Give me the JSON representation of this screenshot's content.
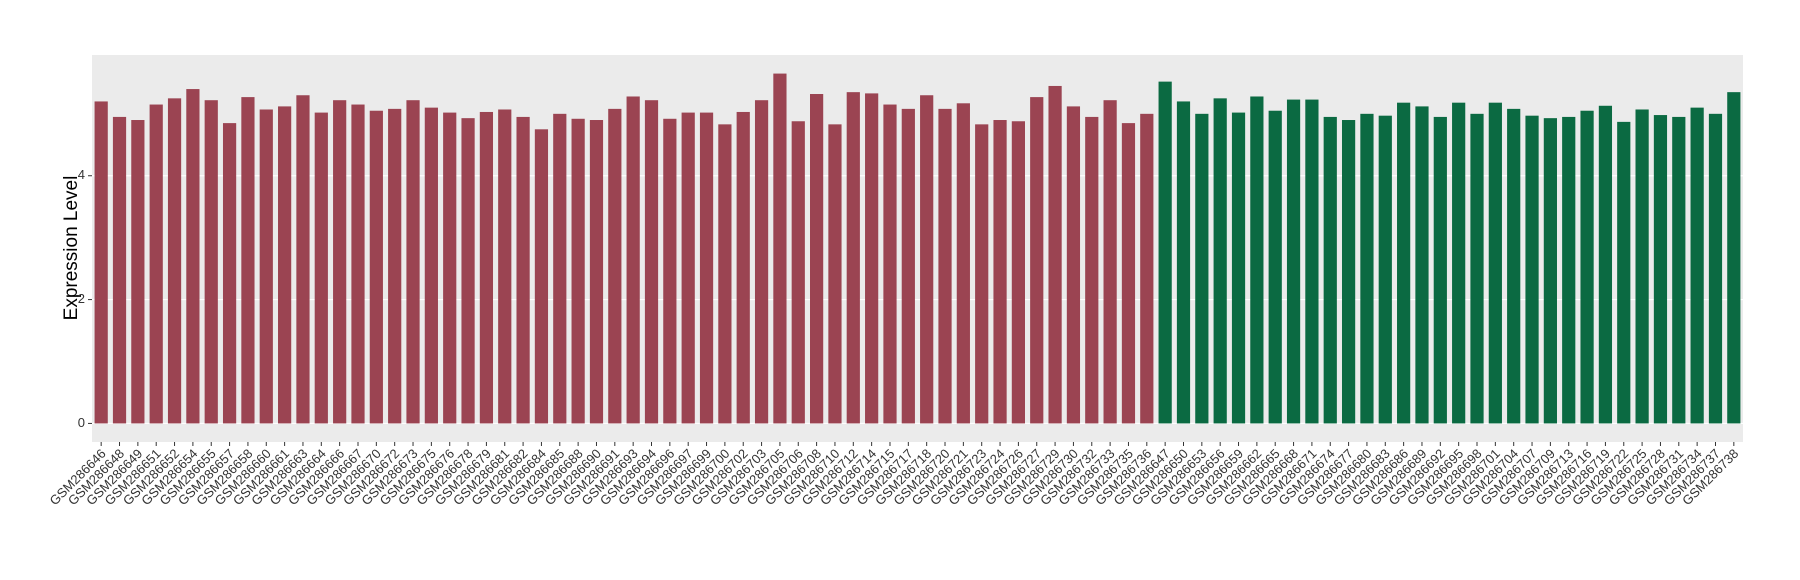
{
  "chart_data": {
    "type": "bar",
    "y_label": "Expression Level",
    "categories": [
      "GSM286646",
      "GSM286648",
      "GSM286649",
      "GSM286651",
      "GSM286652",
      "GSM286654",
      "GSM286655",
      "GSM286657",
      "GSM286658",
      "GSM286660",
      "GSM286661",
      "GSM286663",
      "GSM286664",
      "GSM286666",
      "GSM286667",
      "GSM286670",
      "GSM286672",
      "GSM286673",
      "GSM286675",
      "GSM286676",
      "GSM286678",
      "GSM286679",
      "GSM286681",
      "GSM286682",
      "GSM286684",
      "GSM286685",
      "GSM286688",
      "GSM286690",
      "GSM286691",
      "GSM286693",
      "GSM286694",
      "GSM286696",
      "GSM286697",
      "GSM286699",
      "GSM286700",
      "GSM286702",
      "GSM286703",
      "GSM286705",
      "GSM286706",
      "GSM286708",
      "GSM286710",
      "GSM286712",
      "GSM286714",
      "GSM286715",
      "GSM286717",
      "GSM286718",
      "GSM286720",
      "GSM286721",
      "GSM286723",
      "GSM286724",
      "GSM286726",
      "GSM286727",
      "GSM286729",
      "GSM286730",
      "GSM286732",
      "GSM286733",
      "GSM286735",
      "GSM286736",
      "GSM286647",
      "GSM286650",
      "GSM286653",
      "GSM286656",
      "GSM286659",
      "GSM286662",
      "GSM286665",
      "GSM286668",
      "GSM286671",
      "GSM286674",
      "GSM286677",
      "GSM286680",
      "GSM286683",
      "GSM286686",
      "GSM286689",
      "GSM286692",
      "GSM286695",
      "GSM286698",
      "GSM286701",
      "GSM286704",
      "GSM286707",
      "GSM286709",
      "GSM286713",
      "GSM286716",
      "GSM286719",
      "GSM286722",
      "GSM286725",
      "GSM286728",
      "GSM286731",
      "GSM286734",
      "GSM286737",
      "GSM286738"
    ],
    "values": [
      5.2,
      4.95,
      4.9,
      5.15,
      5.25,
      5.4,
      5.22,
      4.85,
      5.27,
      5.07,
      5.12,
      5.3,
      5.02,
      5.22,
      5.15,
      5.05,
      5.08,
      5.22,
      5.1,
      5.02,
      4.93,
      5.03,
      5.07,
      4.95,
      4.75,
      5.0,
      4.92,
      4.9,
      5.08,
      5.28,
      5.22,
      4.92,
      5.02,
      5.02,
      4.83,
      5.03,
      5.22,
      5.65,
      4.88,
      5.32,
      4.83,
      5.35,
      5.33,
      5.15,
      5.08,
      5.3,
      5.08,
      5.17,
      4.83,
      4.9,
      4.88,
      5.27,
      5.45,
      5.12,
      4.95,
      5.22,
      4.85,
      5.0,
      5.52,
      5.2,
      5.0,
      5.25,
      5.02,
      5.28,
      5.05,
      5.23,
      5.23,
      4.95,
      4.9,
      5.0,
      4.97,
      5.18,
      5.12,
      4.95,
      5.18,
      5.0,
      5.18,
      5.08,
      4.97,
      4.93,
      4.95,
      5.05,
      5.13,
      4.87,
      5.07,
      4.98,
      4.95,
      5.1,
      5.0,
      5.35
    ],
    "group_colors": [
      "#9b4452",
      "#0b6a42"
    ],
    "group_sizes": [
      58,
      32
    ],
    "ylim": [
      -0.3,
      5.95
    ],
    "yticks": [
      0,
      2,
      4
    ],
    "grid": true
  }
}
